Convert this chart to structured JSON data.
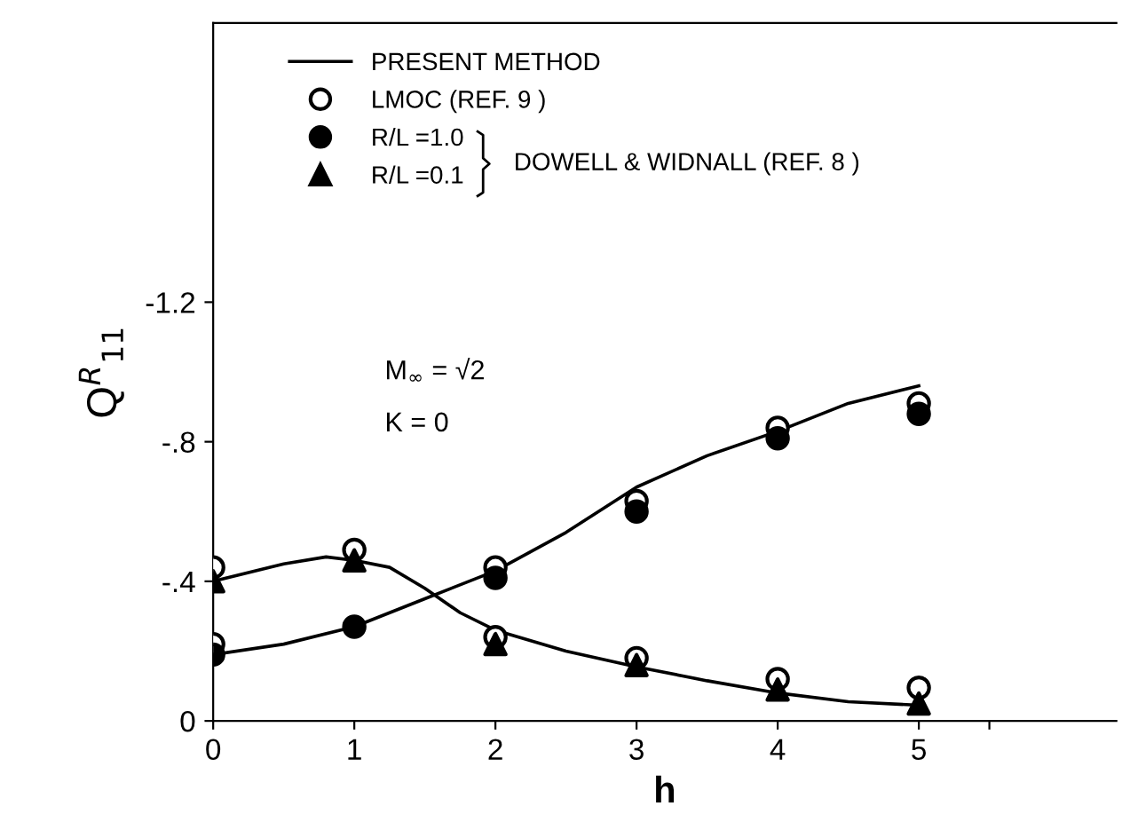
{
  "chart_data": {
    "type": "line",
    "xlabel": "h",
    "ylabel": "Q$^{R}$$_{11}$",
    "xlim": [
      0,
      6.4
    ],
    "xticks": [
      0,
      1,
      2,
      3,
      4,
      5,
      {
        "value": 5.5,
        "label": null
      }
    ],
    "ylim": [
      0,
      -2.0
    ],
    "yticks": [
      0,
      {
        "value": -0.4,
        "label": "-.4"
      },
      {
        "value": -0.8,
        "label": "-.8"
      },
      {
        "value": -1.2,
        "label": "-1.2"
      }
    ],
    "grid": false,
    "legend": "top left",
    "annotations": [
      "DOWELL & WIDNALL (REF. 8 )",
      "M$_{∞}$ = √2",
      "K = 0"
    ],
    "series": [
      {
        "name": "PRESENT METHOD",
        "color": "#000000",
        "marker": "none",
        "line_style": "solid",
        "x": [
          0,
          0.5,
          1,
          1.5,
          2,
          2.5,
          3,
          3.5,
          4,
          4.5,
          5
        ],
        "values": [
          -0.19,
          -0.22,
          -0.27,
          -0.35,
          -0.43,
          -0.54,
          -0.67,
          -0.76,
          -0.83,
          -0.91,
          -0.96
        ]
      },
      {
        "color": "#000000",
        "marker": "none",
        "line_style": "solid",
        "x": [
          0,
          0.5,
          0.8,
          1,
          1.25,
          1.5,
          1.75,
          2,
          2.5,
          3,
          3.5,
          4,
          4.5,
          5
        ],
        "values": [
          -0.4,
          -0.45,
          -0.47,
          -0.46,
          -0.44,
          -0.38,
          -0.31,
          -0.26,
          -0.2,
          -0.155,
          -0.115,
          -0.08,
          -0.055,
          -0.045
        ]
      },
      {
        "name": "LMOC (REF. 9 )",
        "type": "scatter",
        "color": "#000000",
        "marker": "circle",
        "x": [
          0,
          1,
          2,
          3,
          4,
          5,
          0,
          1,
          2,
          3,
          4,
          5
        ],
        "values": [
          -0.22,
          null,
          -0.44,
          -0.63,
          -0.84,
          -0.91,
          -0.44,
          -0.49,
          -0.24,
          -0.18,
          -0.12,
          -0.095
        ]
      },
      {
        "name": "R/L =1.0",
        "type": "scatter",
        "color": "#000000",
        "marker": "circle",
        "x": [
          0,
          1,
          2,
          3,
          4,
          5
        ],
        "values": [
          -0.19,
          -0.27,
          -0.41,
          -0.6,
          -0.81,
          -0.88
        ]
      },
      {
        "name": "R/L =0.1",
        "type": "scatter",
        "color": "#000000",
        "marker": "triangle",
        "x": [
          0,
          1,
          2,
          3,
          4,
          5
        ],
        "values": [
          -0.4,
          -0.46,
          -0.22,
          -0.16,
          -0.09,
          -0.05
        ]
      }
    ]
  }
}
